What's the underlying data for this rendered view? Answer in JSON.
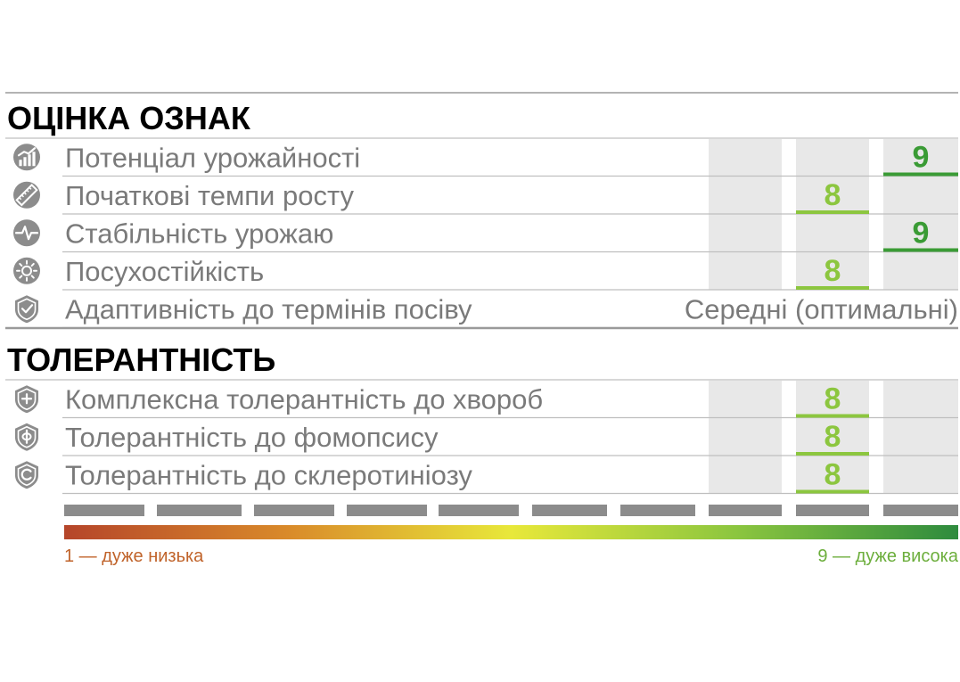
{
  "colors": {
    "score_8": "#8cc63f",
    "score_9": "#3a9b35",
    "column_bg": "#e8e8e8",
    "row_line": "#bfbfbf",
    "label_text": "#7a7a7a",
    "icon_fill": "#8c8c8c",
    "scale_block": "#8c8c8c",
    "gradient": [
      "#b5452a",
      "#d98a2a",
      "#e8e83a",
      "#8cc63f",
      "#2e8b3e"
    ],
    "legend_low": "#c0632a",
    "legend_high": "#6cae3c"
  },
  "sections": [
    {
      "title": "ОЦІНКА ОЗНАК",
      "rows": [
        {
          "icon": "bar-chart-growth-icon",
          "label": "Потенціал урожайності",
          "score": 9
        },
        {
          "icon": "ruler-icon",
          "label": "Початкові темпи росту",
          "score": 8
        },
        {
          "icon": "pulse-line-icon",
          "label": "Стабільність урожаю",
          "score": 9
        },
        {
          "icon": "sun-icon",
          "label": "Посухостійкість",
          "score": 8
        },
        {
          "icon": "shield-check-icon",
          "label": "Адаптивність до термінів посіву",
          "text_value": "Середні (оптимальні)"
        }
      ]
    },
    {
      "title": "ТОЛЕРАНТНІСТЬ",
      "rows": [
        {
          "icon": "shield-plus-icon",
          "label": "Комплексна толерантність до хвороб",
          "score": 8
        },
        {
          "icon": "shield-phi-icon",
          "label": "Толерантність до фомопсису",
          "score": 8
        },
        {
          "icon": "shield-c-icon",
          "label": "Толерантність до склеротиніозу",
          "score": 8
        }
      ]
    }
  ],
  "chart_data": {
    "type": "table",
    "scale_min": 1,
    "scale_max": 9,
    "categories": [
      "Потенціал урожайності",
      "Початкові темпи росту",
      "Стабільність урожаю",
      "Посухостійкість",
      "Комплексна толерантність до хвороб",
      "Толерантність до фомопсису",
      "Толерантність до склеротиніозу"
    ],
    "values": [
      9,
      8,
      9,
      8,
      8,
      8,
      8
    ]
  },
  "legend": {
    "low_label": "1 — дуже низька",
    "high_label": "9 — дуже висока"
  }
}
